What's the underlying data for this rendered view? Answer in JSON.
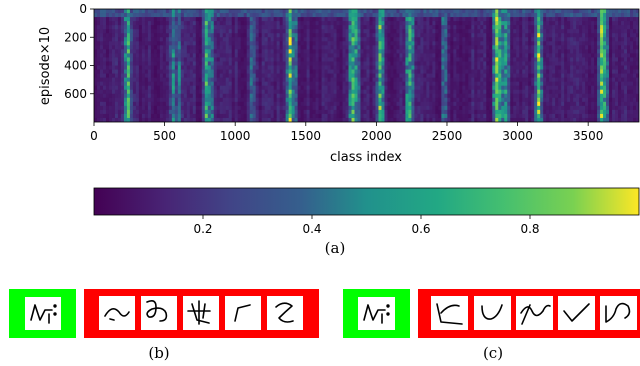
{
  "chart_data": {
    "type": "heatmap",
    "xlabel": "class index",
    "ylabel": "episode×10",
    "xlim": [
      0,
      3860
    ],
    "ylim": [
      800,
      0
    ],
    "x_ticks": [
      0,
      500,
      1000,
      1500,
      2000,
      2500,
      3000,
      3500
    ],
    "y_ticks": [
      0,
      200,
      400,
      600
    ],
    "hot_columns": [
      {
        "x": 240,
        "v": 0.85
      },
      {
        "x": 560,
        "v": 0.6
      },
      {
        "x": 600,
        "v": 0.55
      },
      {
        "x": 800,
        "v": 0.85
      },
      {
        "x": 830,
        "v": 0.6
      },
      {
        "x": 1120,
        "v": 0.5
      },
      {
        "x": 1390,
        "v": 0.95
      },
      {
        "x": 1420,
        "v": 0.6
      },
      {
        "x": 1830,
        "v": 0.9
      },
      {
        "x": 1860,
        "v": 0.7
      },
      {
        "x": 2030,
        "v": 0.95
      },
      {
        "x": 2230,
        "v": 0.85
      },
      {
        "x": 2250,
        "v": 0.6
      },
      {
        "x": 2480,
        "v": 0.55
      },
      {
        "x": 2850,
        "v": 0.95
      },
      {
        "x": 2880,
        "v": 0.8
      },
      {
        "x": 2920,
        "v": 0.7
      },
      {
        "x": 3150,
        "v": 0.9
      },
      {
        "x": 3600,
        "v": 1.0
      },
      {
        "x": 3620,
        "v": 0.75
      }
    ],
    "colorbar": {
      "colormap": "viridis",
      "range": [
        0,
        1
      ],
      "ticks": [
        0.2,
        0.4,
        0.6,
        0.8
      ],
      "tick_labels": [
        "0.2",
        "0.4",
        "0.6",
        "0.8"
      ]
    },
    "colors": {
      "query_border": "#00ff00",
      "support_border": "#ff0000"
    }
  },
  "captions": {
    "a": "(a)",
    "b": "(b)",
    "c": "(c)"
  }
}
